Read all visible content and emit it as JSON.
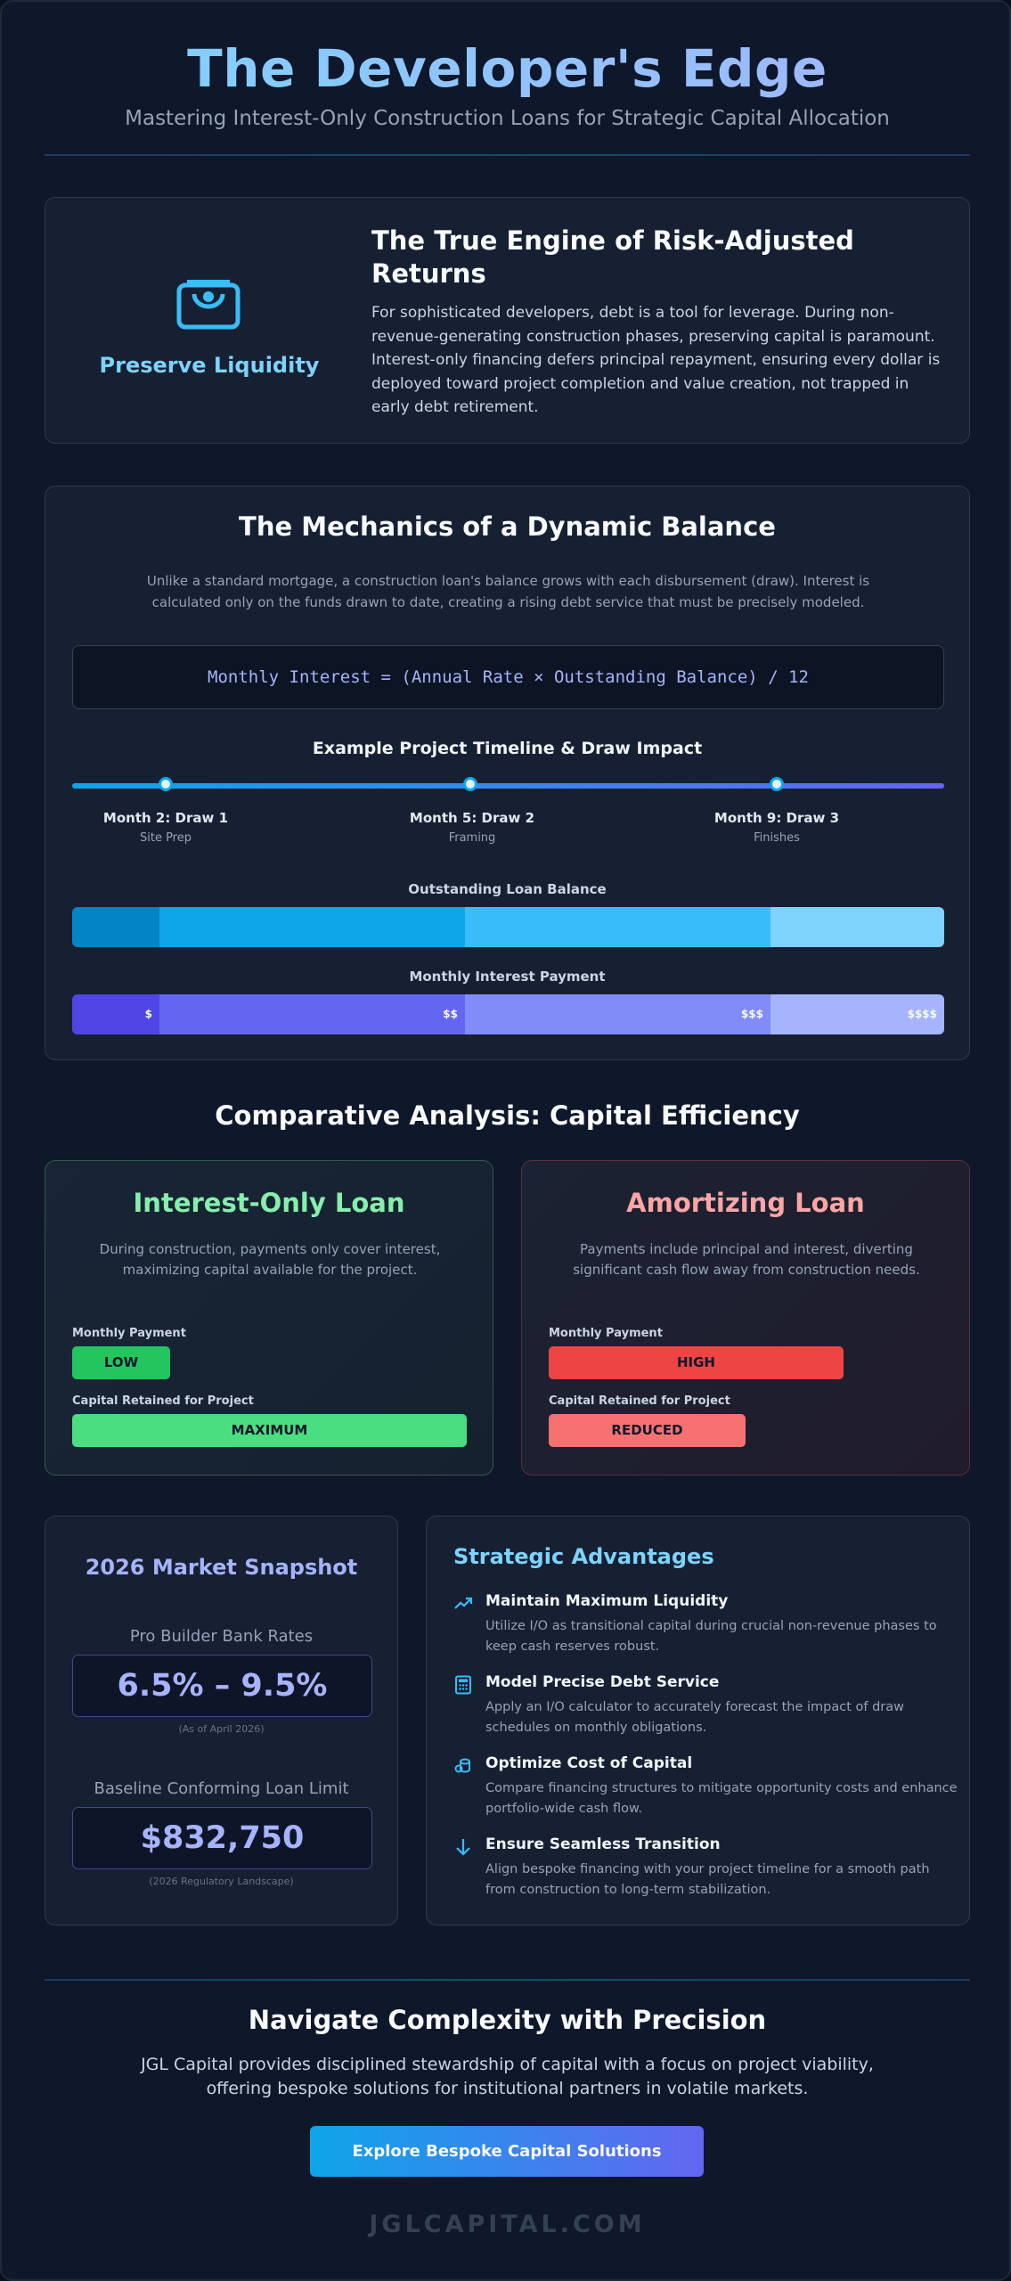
{
  "hero": {
    "title": "The Developer's Edge",
    "subtitle": "Mastering Interest-Only Construction Loans for Strategic Capital Allocation"
  },
  "liquidity": {
    "icon": "wallet-icon",
    "label": "Preserve Liquidity",
    "heading": "The True Engine of Risk-Adjusted Returns",
    "body": "For sophisticated developers, debt is a tool for leverage. During non-revenue-generating construction phases, preserving capital is paramount. Interest-only financing defers principal repayment, ensuring every dollar is deployed toward project completion and value creation, not trapped in early debt retirement."
  },
  "mechanics": {
    "heading": "The Mechanics of a Dynamic Balance",
    "description": "Unlike a standard mortgage, a construction loan's balance grows with each disbursement (draw). Interest is calculated only on the funds drawn to date, creating a rising debt service that must be precisely modeled.",
    "formula": "Monthly Interest = (Annual Rate × Outstanding Balance) / 12",
    "timeline_title": "Example Project Timeline & Draw Impact",
    "milestones": [
      {
        "label": "Month 2: Draw 1",
        "sub": "Site Prep"
      },
      {
        "label": "Month 5: Draw 2",
        "sub": "Framing"
      },
      {
        "label": "Month 9: Draw 3",
        "sub": "Finishes"
      }
    ],
    "balance_title": "Outstanding Loan Balance",
    "interest_title": "Monthly Interest Payment",
    "interest_labels": [
      "$",
      "$$",
      "$$$",
      "$$$$"
    ],
    "colors": {
      "balance": [
        "#0284c7",
        "#0ea5e9",
        "#38bdf8",
        "#7dd3fc"
      ],
      "interest": [
        "#4f46e5",
        "#6366f1",
        "#818cf8",
        "#a5b4fc"
      ]
    }
  },
  "comparison": {
    "title": "Comparative Analysis: Capital Efficiency",
    "interest_only": {
      "title": "Interest-Only Loan",
      "description": "During construction, payments only cover interest, maximizing capital available for the project.",
      "payment_label": "Monthly Payment",
      "payment_value": "LOW",
      "capital_label": "Capital Retained for Project",
      "capital_value": "MAXIMUM",
      "color": "#86efac"
    },
    "amortizing": {
      "title": "Amortizing Loan",
      "description": "Payments include principal and interest, diverting significant cash flow away from construction needs.",
      "payment_label": "Monthly Payment",
      "payment_value": "HIGH",
      "capital_label": "Capital Retained for Project",
      "capital_value": "REDUCED",
      "color": "#fca5a5"
    }
  },
  "snapshot": {
    "title": "2026 Market Snapshot",
    "rates_label": "Pro Builder Bank Rates",
    "rates_value": "6.5% – 9.5%",
    "rates_note": "(As of April 2026)",
    "limit_label": "Baseline Conforming Loan Limit",
    "limit_value": "$832,750",
    "limit_note": "(2026 Regulatory Landscape)"
  },
  "advantages": {
    "title": "Strategic Advantages",
    "items": [
      {
        "icon": "trend-up-icon",
        "title": "Maintain Maximum Liquidity",
        "body": "Utilize I/O as transitional capital during crucial non-revenue phases to keep cash reserves robust."
      },
      {
        "icon": "calculator-icon",
        "title": "Model Precise Debt Service",
        "body": "Apply an I/O calculator to accurately forecast the impact of draw schedules on monthly obligations."
      },
      {
        "icon": "coins-icon",
        "title": "Optimize Cost of Capital",
        "body": "Compare financing structures to mitigate opportunity costs and enhance portfolio-wide cash flow."
      },
      {
        "icon": "arrow-down-icon",
        "title": "Ensure Seamless Transition",
        "body": "Align bespoke financing with your project timeline for a smooth path from construction to long-term stabilization."
      }
    ]
  },
  "cta": {
    "title": "Navigate Complexity with Precision",
    "text": "JGL Capital provides disciplined stewardship of capital with a focus on project viability, offering bespoke solutions for institutional partners in volatile markets.",
    "button": "Explore Bespoke Capital Solutions",
    "brand": "JGLCAPITAL.COM"
  }
}
